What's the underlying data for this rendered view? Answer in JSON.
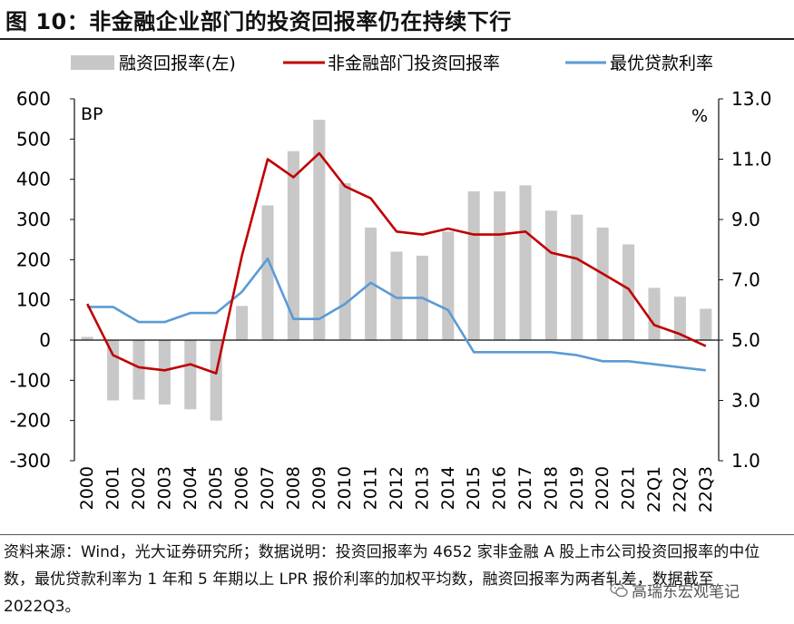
{
  "figure": {
    "title": "图 10：非金融企业部门的投资回报率仍在持续下行",
    "source_note": "资料来源：Wind，光大证券研究所；数据说明：投资回报率为 4652 家非金融 A 股上市公司投资回报率的中位数，最优贷款利率为 1 年和 5 年期以上 LPR 报价利率的加权平均数，融资回报率为两者轧差，数据截至 2022Q3。",
    "watermark": "高瑞东宏观笔记",
    "watermark_icon": "wechat-icon"
  },
  "chart_data": {
    "type": "bar",
    "categories": [
      "2000",
      "2001",
      "2002",
      "2003",
      "2004",
      "2005",
      "2006",
      "2007",
      "2008",
      "2009",
      "2010",
      "2011",
      "2012",
      "2013",
      "2014",
      "2015",
      "2016",
      "2017",
      "2018",
      "2019",
      "2020",
      "2021",
      "22Q1",
      "22Q2",
      "22Q3"
    ],
    "left_axis": {
      "label": "BP",
      "min": -300,
      "max": 600,
      "ticks": [
        "-300",
        "-200",
        "-100",
        "0",
        "100",
        "200",
        "300",
        "400",
        "500",
        "600"
      ],
      "tick_values": [
        -300,
        -200,
        -100,
        0,
        100,
        200,
        300,
        400,
        500,
        600
      ]
    },
    "right_axis": {
      "label": "%",
      "min": 1.0,
      "max": 13.0,
      "ticks": [
        "1.0",
        "3.0",
        "5.0",
        "7.0",
        "9.0",
        "11.0",
        "13.0"
      ],
      "tick_values": [
        1,
        3,
        5,
        7,
        9,
        11,
        13
      ]
    },
    "series": [
      {
        "name": "融资回报率(左)",
        "type": "bar",
        "axis": "left",
        "color": "#c8c8c8",
        "values": [
          8,
          -150,
          -148,
          -160,
          -172,
          -200,
          85,
          335,
          470,
          548,
          390,
          280,
          220,
          210,
          270,
          370,
          370,
          385,
          322,
          312,
          280,
          238,
          130,
          108,
          78
        ]
      },
      {
        "name": "非金融部门投资回报率",
        "type": "line",
        "axis": "right",
        "color": "#c00000",
        "values": [
          6.2,
          4.5,
          4.1,
          4.0,
          4.2,
          3.9,
          7.8,
          11.0,
          10.4,
          11.2,
          10.1,
          9.7,
          8.6,
          8.5,
          8.7,
          8.5,
          8.5,
          8.6,
          7.9,
          7.7,
          7.2,
          6.7,
          5.5,
          5.2,
          4.8
        ]
      },
      {
        "name": "最优贷款利率",
        "type": "line",
        "axis": "right",
        "color": "#5b9bd5",
        "values": [
          6.1,
          6.1,
          5.6,
          5.6,
          5.9,
          5.9,
          6.6,
          7.7,
          5.7,
          5.7,
          6.2,
          6.9,
          6.4,
          6.4,
          6.0,
          4.6,
          4.6,
          4.6,
          4.6,
          4.5,
          4.3,
          4.3,
          4.2,
          4.1,
          4.0
        ]
      }
    ]
  }
}
